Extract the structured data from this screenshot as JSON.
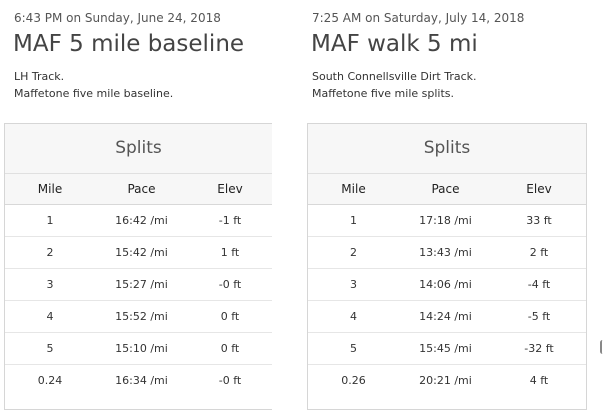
{
  "activities": [
    {
      "timestamp": "6:43 PM on Sunday, June 24, 2018",
      "title": "MAF 5 mile baseline",
      "description": [
        "LH Track.",
        "Maffetone five mile baseline."
      ],
      "splits": {
        "heading": "Splits",
        "columns": [
          "Mile",
          "Pace",
          "Elev"
        ],
        "rows": [
          [
            "1",
            "16:42 /mi",
            "-1 ft"
          ],
          [
            "2",
            "15:42 /mi",
            "1 ft"
          ],
          [
            "3",
            "15:27 /mi",
            "-0 ft"
          ],
          [
            "4",
            "15:52 /mi",
            "0 ft"
          ],
          [
            "5",
            "15:10 /mi",
            "0 ft"
          ],
          [
            "0.24",
            "16:34 /mi",
            "-0 ft"
          ]
        ]
      }
    },
    {
      "timestamp": "7:25 AM on Saturday, July 14, 2018",
      "title": "MAF walk 5 mi",
      "description": [
        "South Connellsville Dirt Track.",
        "Maffetone five mile splits."
      ],
      "splits": {
        "heading": "Splits",
        "columns": [
          "Mile",
          "Pace",
          "Elev"
        ],
        "rows": [
          [
            "1",
            "17:18 /mi",
            "33 ft"
          ],
          [
            "2",
            "13:43 /mi",
            "2 ft"
          ],
          [
            "3",
            "14:06 /mi",
            "-4 ft"
          ],
          [
            "4",
            "14:24 /mi",
            "-5 ft"
          ],
          [
            "5",
            "15:45 /mi",
            "-32 ft"
          ],
          [
            "0.26",
            "20:21 /mi",
            "4 ft"
          ]
        ]
      }
    }
  ]
}
